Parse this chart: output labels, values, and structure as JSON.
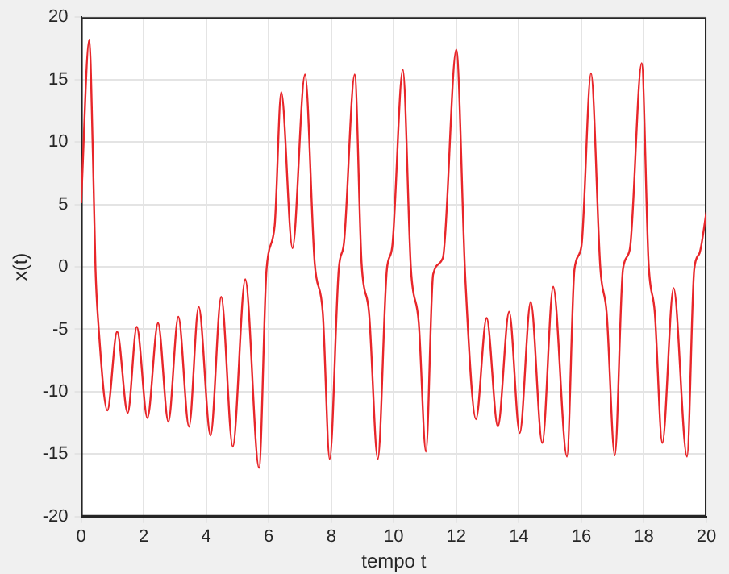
{
  "chart_data": {
    "type": "line",
    "xlabel": "tempo t",
    "ylabel": "x(t)",
    "grid": true,
    "marker": "none",
    "line_style": "solid",
    "xlim": [
      0,
      20
    ],
    "ylim": [
      -20,
      20
    ],
    "xticks": [
      0,
      2,
      4,
      6,
      8,
      10,
      12,
      14,
      16,
      18,
      20
    ],
    "yticks": [
      -20,
      -15,
      -10,
      -5,
      0,
      5,
      10,
      15,
      20
    ],
    "series": [
      {
        "color": "#e8262a",
        "x": [
          0,
          0.26,
          0.38,
          0.46,
          0.55,
          0.84,
          1.15,
          1.49,
          1.78,
          2.12,
          2.46,
          2.79,
          3.11,
          3.45,
          3.76,
          4.14,
          4.48,
          4.85,
          5.25,
          5.69,
          5.93,
          6.19,
          6.4,
          6.76,
          7.16,
          7.47,
          7.73,
          7.95,
          8.24,
          8.41,
          8.75,
          8.97,
          9.21,
          9.49,
          9.78,
          9.95,
          10.29,
          10.55,
          10.8,
          11.03,
          11.26,
          11.57,
          12.0,
          12.29,
          12.63,
          12.97,
          13.33,
          13.69,
          14.03,
          14.38,
          14.75,
          15.1,
          15.54,
          15.78,
          16.0,
          16.31,
          16.61,
          16.81,
          17.07,
          17.33,
          17.55,
          17.93,
          18.15,
          18.35,
          18.59,
          18.95,
          19.38,
          19.61,
          19.78,
          20.0
        ],
        "values": [
          5.1,
          18.2,
          8.6,
          -0.2,
          -4.5,
          -11.5,
          -5.2,
          -11.7,
          -4.8,
          -12.1,
          -4.5,
          -12.4,
          -4.0,
          -12.8,
          -3.2,
          -13.5,
          -2.4,
          -14.4,
          -1.0,
          -16.1,
          -0.2,
          3.3,
          14.0,
          1.5,
          15.4,
          0.3,
          -3.7,
          -15.4,
          -0.2,
          2.0,
          15.4,
          0.3,
          -3.7,
          -15.4,
          -0.2,
          1.6,
          15.8,
          -0.2,
          -4.5,
          -14.8,
          -0.6,
          0.7,
          17.4,
          -1.0,
          -12.2,
          -4.1,
          -12.8,
          -3.6,
          -13.3,
          -2.8,
          -14.1,
          -1.6,
          -15.2,
          -0.2,
          1.6,
          15.5,
          -0.2,
          -3.7,
          -15.1,
          -0.2,
          1.4,
          16.3,
          0.3,
          -3.7,
          -14.1,
          -1.7,
          -15.2,
          -0.2,
          1.1,
          4.4
        ]
      }
    ]
  }
}
